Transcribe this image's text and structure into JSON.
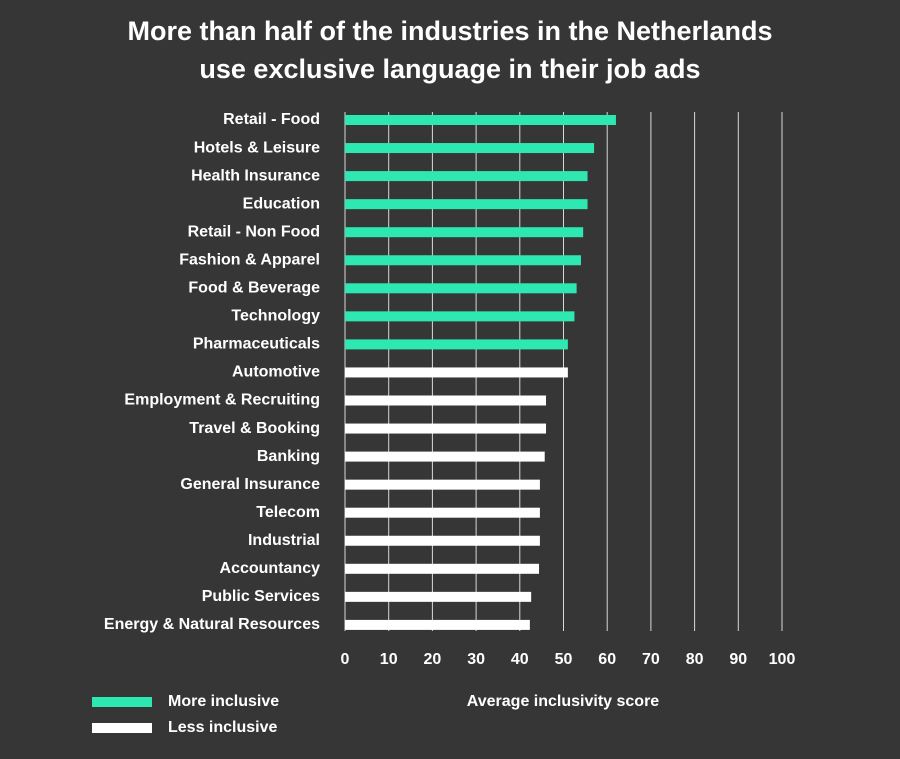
{
  "chart_data": {
    "type": "bar",
    "orientation": "horizontal",
    "title": "More than half of the industries in the Netherlands use exclusive language in their job ads",
    "x_label": "Average inclusivity score",
    "categories": [
      "Retail - Food",
      "Hotels & Leisure",
      "Health Insurance",
      "Education",
      "Retail - Non Food",
      "Fashion & Apparel",
      "Food & Beverage",
      "Technology",
      "Pharmaceuticals",
      "Automotive",
      "Employment & Recruiting",
      "Travel & Booking",
      "Banking",
      "General Insurance",
      "Telecom",
      "Industrial",
      "Accountancy",
      "Public Services",
      "Energy & Natural Resources"
    ],
    "series": [
      {
        "name": "More inclusive",
        "color": "#2ee8b2",
        "values": [
          62,
          57,
          55.5,
          55.5,
          54.5,
          54,
          53,
          52.5,
          51,
          null,
          null,
          null,
          null,
          null,
          null,
          null,
          null,
          null,
          null
        ]
      },
      {
        "name": "Less inclusive",
        "color": "#ffffff",
        "values": [
          null,
          null,
          null,
          null,
          null,
          null,
          null,
          null,
          null,
          51,
          46,
          46,
          45.7,
          44.6,
          44.6,
          44.6,
          44.4,
          42.6,
          42.3
        ]
      }
    ],
    "xlim": [
      0,
      100
    ],
    "xticks": [
      0,
      10,
      20,
      30,
      40,
      50,
      60,
      70,
      80,
      90,
      100
    ],
    "grid": true,
    "legend": "bottom-left"
  }
}
